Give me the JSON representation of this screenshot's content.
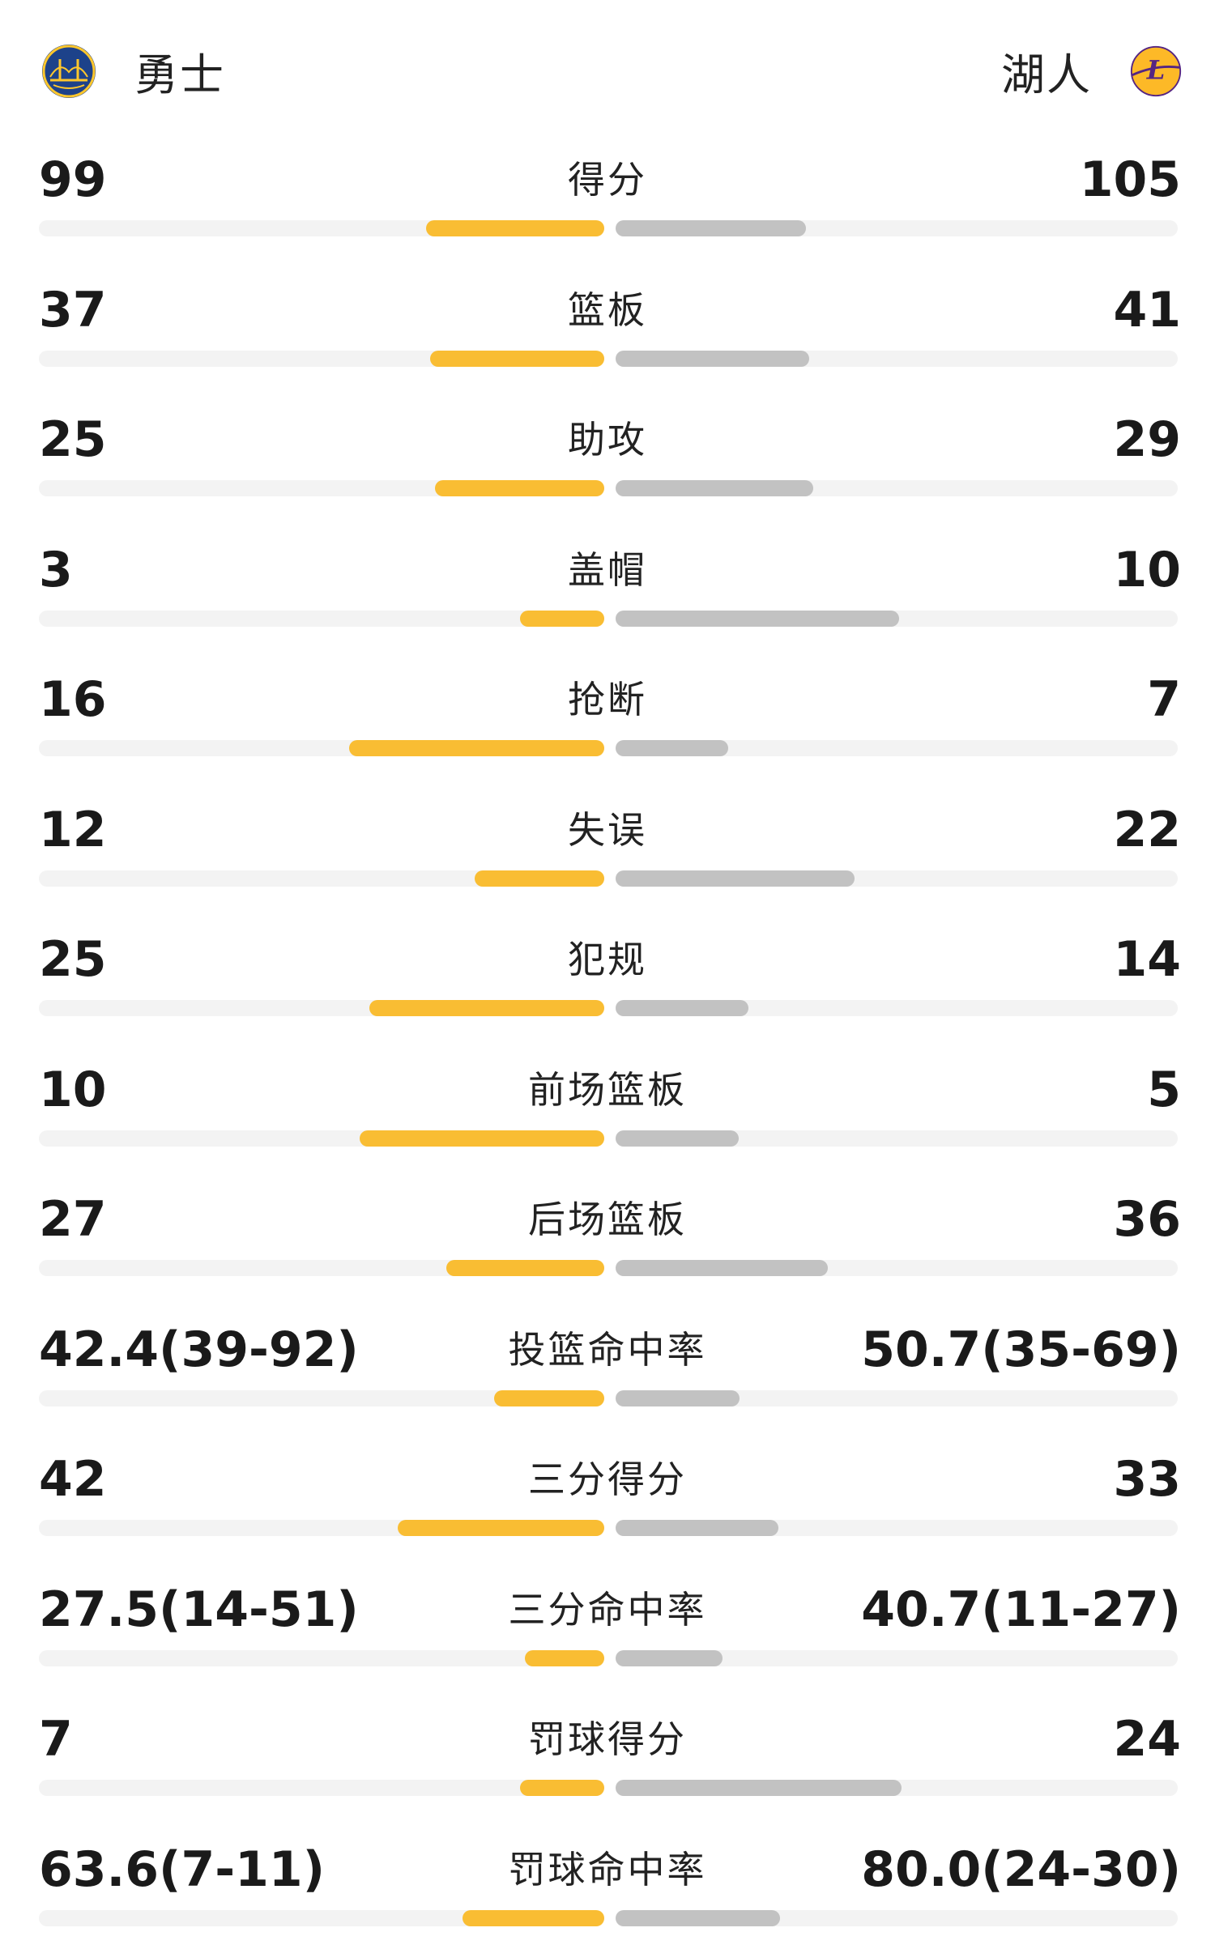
{
  "teams": {
    "left": {
      "name": "勇士",
      "icon": "warriors-logo-icon",
      "color": "#1d428a",
      "accent": "#ffc72c"
    },
    "right": {
      "name": "湖人",
      "icon": "lakers-logo-icon",
      "color": "#552583",
      "accent": "#fdb927"
    }
  },
  "colors": {
    "left_bar": "#f9bd33",
    "right_bar": "#c2c2c2",
    "track": "#f3f3f3"
  },
  "stats": [
    {
      "label": "得分",
      "left": "99",
      "right": "105",
      "left_fill": 0.319,
      "right_fill": 0.338
    },
    {
      "label": "篮板",
      "left": "37",
      "right": "41",
      "left_fill": 0.311,
      "right_fill": 0.344
    },
    {
      "label": "助攻",
      "left": "25",
      "right": "29",
      "left_fill": 0.303,
      "right_fill": 0.352
    },
    {
      "label": "盖帽",
      "left": "3",
      "right": "10",
      "left_fill": 0.151,
      "right_fill": 0.505
    },
    {
      "label": "抢断",
      "left": "16",
      "right": "7",
      "left_fill": 0.456,
      "right_fill": 0.2
    },
    {
      "label": "失误",
      "left": "12",
      "right": "22",
      "left_fill": 0.232,
      "right_fill": 0.425
    },
    {
      "label": "犯规",
      "left": "25",
      "right": "14",
      "left_fill": 0.42,
      "right_fill": 0.237
    },
    {
      "label": "前场篮板",
      "left": "10",
      "right": "5",
      "left_fill": 0.438,
      "right_fill": 0.219
    },
    {
      "label": "后场篮板",
      "left": "27",
      "right": "36",
      "left_fill": 0.282,
      "right_fill": 0.377
    },
    {
      "label": "投篮命中率",
      "left": "42.4(39-92)",
      "right": "50.7(35-69)",
      "left_fill": 0.197,
      "right_fill": 0.221
    },
    {
      "label": "三分得分",
      "left": "42",
      "right": "33",
      "left_fill": 0.369,
      "right_fill": 0.29
    },
    {
      "label": "三分命中率",
      "left": "27.5(14-51)",
      "right": "40.7(11-27)",
      "left_fill": 0.142,
      "right_fill": 0.19
    },
    {
      "label": "罚球得分",
      "left": "7",
      "right": "24",
      "left_fill": 0.15,
      "right_fill": 0.509
    },
    {
      "label": "罚球命中率",
      "left": "63.6(7-11)",
      "right": "80.0(24-30)",
      "left_fill": 0.253,
      "right_fill": 0.292
    }
  ]
}
